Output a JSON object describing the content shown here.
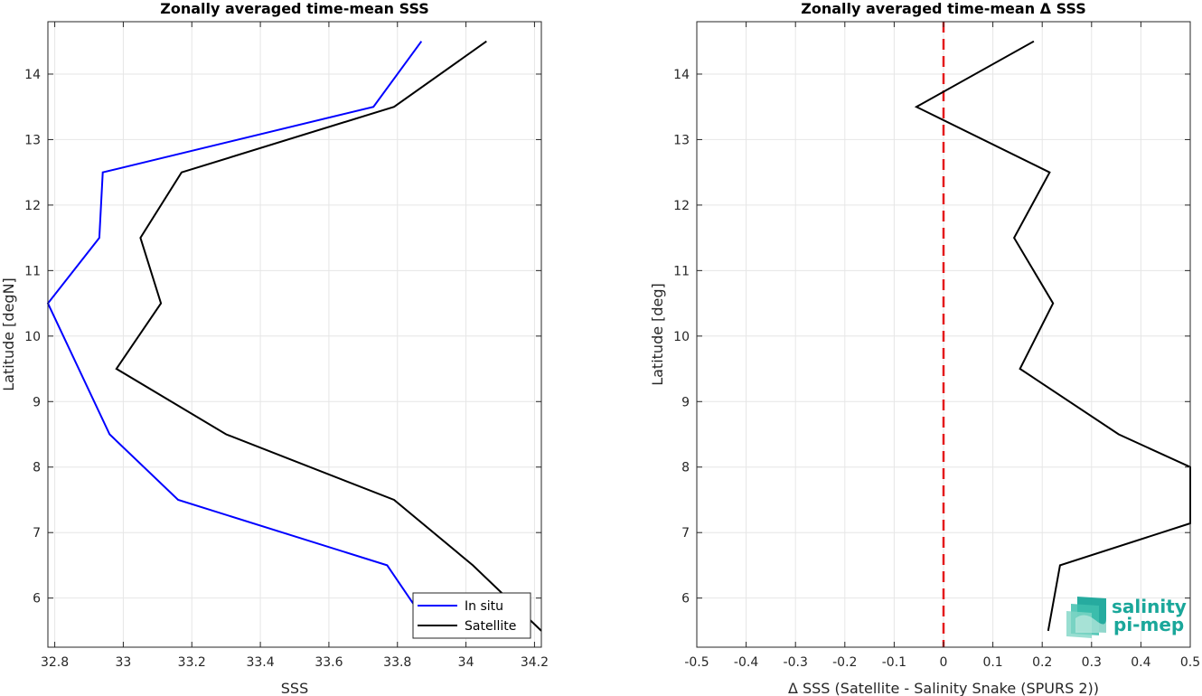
{
  "chart_data": [
    {
      "type": "line",
      "title": "Zonally averaged time-mean SSS",
      "xlabel": "SSS",
      "ylabel": "Latitude [degN]",
      "xlim": [
        32.78,
        34.22
      ],
      "ylim": [
        5.25,
        14.8
      ],
      "xticks": [
        "32.8",
        "33",
        "33.2",
        "33.4",
        "33.6",
        "33.8",
        "34",
        "34.2"
      ],
      "xtick_values": [
        32.8,
        33.0,
        33.2,
        33.4,
        33.6,
        33.8,
        34.0,
        34.2
      ],
      "yticks": [
        "6",
        "7",
        "8",
        "9",
        "10",
        "11",
        "12",
        "13",
        "14"
      ],
      "ytick_values": [
        6,
        7,
        8,
        9,
        10,
        11,
        12,
        13,
        14
      ],
      "grid": true,
      "legend": "bottom-right",
      "series": [
        {
          "name": "In situ",
          "color": "#0000ff",
          "x": [
            33.9,
            33.77,
            33.16,
            32.96,
            32.78,
            32.93,
            32.94,
            33.73,
            33.87
          ],
          "y": [
            5.5,
            6.5,
            7.5,
            8.5,
            10.5,
            11.5,
            12.5,
            13.5,
            14.5
          ]
        },
        {
          "name": "Satellite",
          "color": "#000000",
          "x": [
            34.22,
            34.02,
            33.79,
            33.3,
            32.98,
            33.11,
            33.05,
            33.17,
            33.79,
            34.06
          ],
          "y": [
            5.5,
            6.5,
            7.5,
            8.5,
            9.5,
            10.5,
            11.5,
            12.5,
            13.5,
            14.5
          ]
        }
      ]
    },
    {
      "type": "line",
      "title": "Zonally averaged time-mean Δ SSS",
      "xlabel": "Δ SSS (Satellite - Salinity Snake (SPURS 2))",
      "ylabel": "Latitude [deg]",
      "xlim": [
        -0.5,
        0.5
      ],
      "ylim": [
        5.25,
        14.8
      ],
      "xticks": [
        "-0.5",
        "-0.4",
        "-0.3",
        "-0.2",
        "-0.1",
        "0",
        "0.1",
        "0.2",
        "0.3",
        "0.4",
        "0.5"
      ],
      "xtick_values": [
        -0.5,
        -0.4,
        -0.3,
        -0.2,
        -0.1,
        0,
        0.1,
        0.2,
        0.3,
        0.4,
        0.5
      ],
      "yticks": [
        "6",
        "7",
        "8",
        "9",
        "10",
        "11",
        "12",
        "13",
        "14"
      ],
      "ytick_values": [
        6,
        7,
        8,
        9,
        10,
        11,
        12,
        13,
        14
      ],
      "grid": true,
      "zero_line": {
        "x": 0,
        "color": "#e41a1c",
        "style": "dashed"
      },
      "series": [
        {
          "color": "#000000",
          "x": [
            0.212,
            0.236,
            0.5,
            0.5,
            0.355,
            0.155,
            0.222,
            0.143,
            0.215,
            -0.055,
            0.183
          ],
          "y": [
            5.5,
            6.5,
            7.14,
            8.0,
            8.5,
            9.5,
            10.5,
            11.5,
            12.5,
            13.5,
            14.5
          ]
        }
      ]
    }
  ],
  "logo": {
    "line1": "salinity",
    "line2": "pi-mep",
    "color": "#1aa79a"
  }
}
